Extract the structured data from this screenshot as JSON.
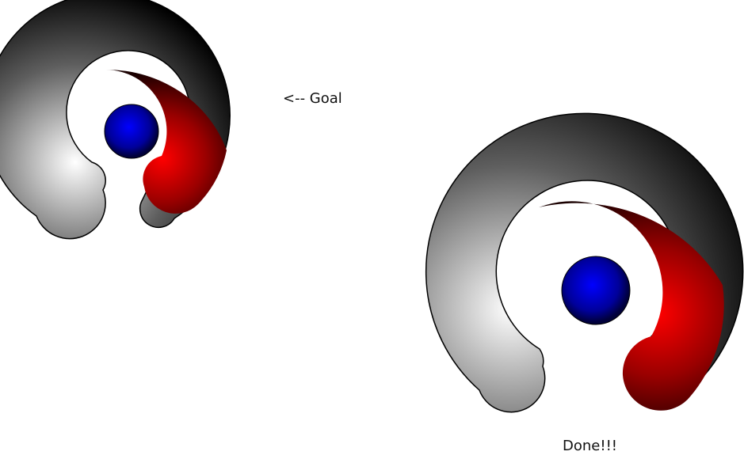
{
  "labels": {
    "goal": "<-- Goal",
    "done": "Done!!!"
  },
  "colors": {
    "background": "#ffffff",
    "ring_dark": "#000000",
    "ring_light": "#ffffff",
    "accent_red": "#ff0000",
    "accent_red_dark": "#330000",
    "core_blue": "#0000ff",
    "core_blue_dark": "#00004a"
  },
  "figures": [
    {
      "id": "goal"
    },
    {
      "id": "done"
    }
  ]
}
